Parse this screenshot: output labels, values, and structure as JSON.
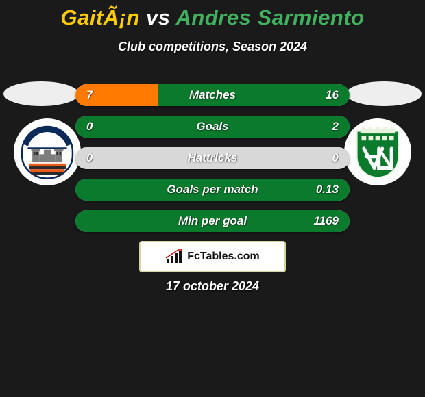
{
  "title": {
    "player1": "GaitÃ¡n",
    "vs": "vs",
    "player2": "Andres Sarmiento",
    "color1": "#ffcc00",
    "color2": "#41b05f"
  },
  "subtitle": "Club competitions, Season 2024",
  "bar_track_color": "#d8d8d8",
  "bar_fill_left_color": "#ff7a00",
  "bar_fill_right_color": "#0a7a2c",
  "rows": [
    {
      "label": "Matches",
      "left": "7",
      "right": "16",
      "left_pct": 30,
      "right_pct": 70
    },
    {
      "label": "Goals",
      "left": "0",
      "right": "2",
      "left_pct": 0,
      "right_pct": 100
    },
    {
      "label": "Hattricks",
      "left": "0",
      "right": "0",
      "left_pct": 0,
      "right_pct": 0
    },
    {
      "label": "Goals per match",
      "left": "",
      "right": "0.13",
      "left_pct": 0,
      "right_pct": 100
    },
    {
      "label": "Min per goal",
      "left": "",
      "right": "1169",
      "left_pct": 0,
      "right_pct": 100
    }
  ],
  "brand": "FcTables.com",
  "date": "17 october 2024",
  "crest_left": {
    "shield_fill": "#ffffff",
    "shield_border": "#0a2a5a",
    "arc_text_color": "#0a2a5a",
    "top_band": "#0a2a5a",
    "tower_gray": "#7d7d7d",
    "stripe_a": "#e85a1a",
    "stripe_b": "#2a2a2a"
  },
  "crest_right": {
    "bg": "#0a7a2c",
    "light": "#e8f2dc",
    "letters_fill": "#ffffff"
  }
}
